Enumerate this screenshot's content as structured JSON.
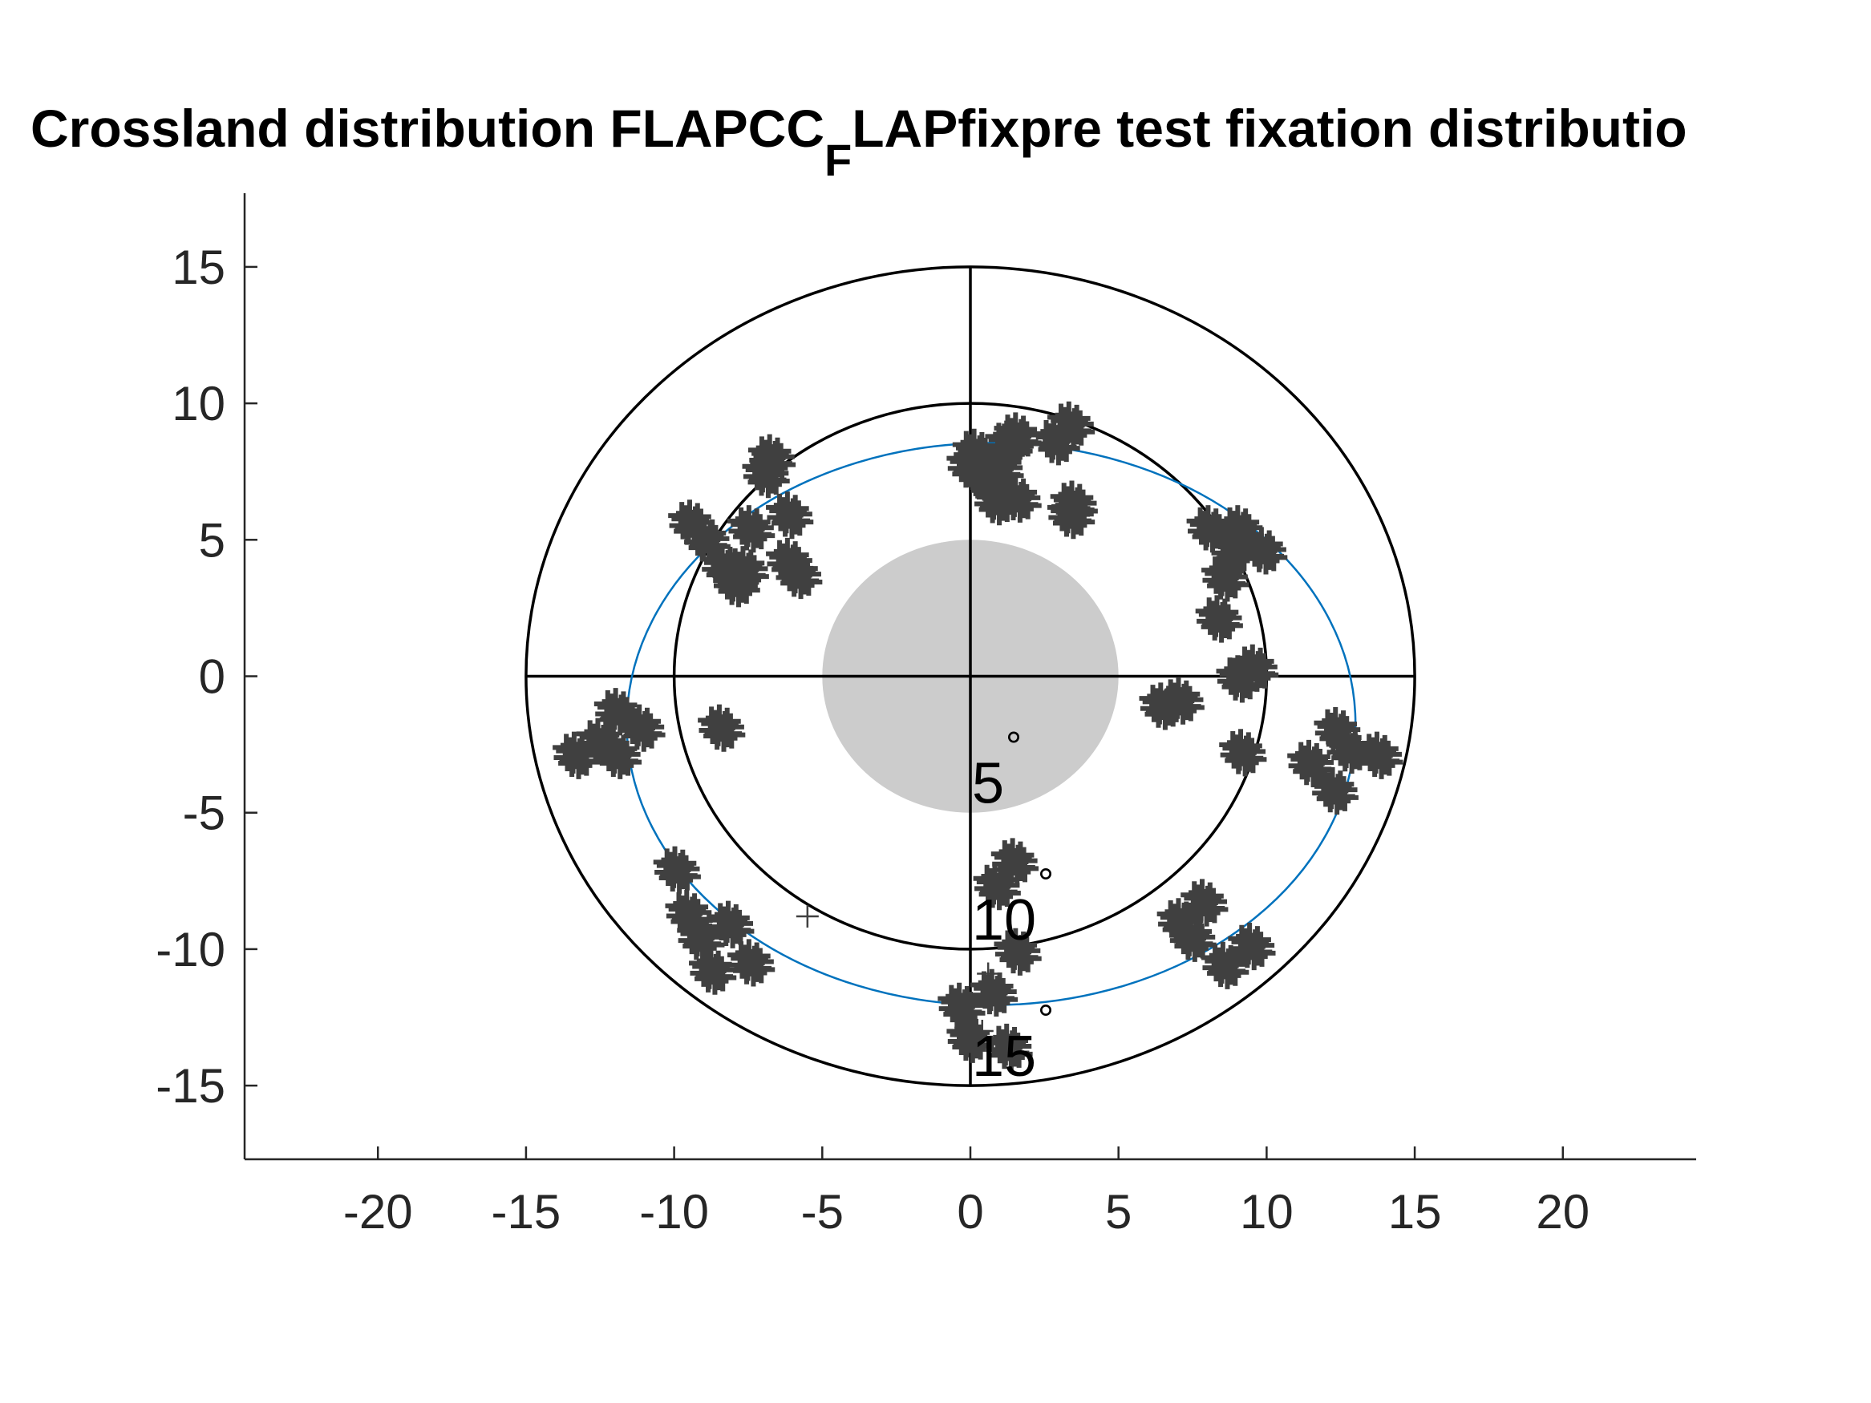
{
  "chart_data": {
    "type": "scatter",
    "title": "Crossland distribution FLAPCC",
    "title_subscript": "F",
    "title_rest": "LAPfixpre test fixation distributio",
    "xlabel": "",
    "ylabel": "",
    "xlim": [
      -24.5,
      24.5
    ],
    "ylim": [
      17.7,
      -17.7
    ],
    "y_reversed": true,
    "grid": false,
    "x_ticks": [
      -20,
      -15,
      -10,
      -5,
      0,
      5,
      10,
      15,
      20
    ],
    "y_ticks": [
      -15,
      -10,
      -5,
      0,
      5,
      10,
      15
    ],
    "x_tick_labels": [
      "-20",
      "-15",
      "-10",
      "-5",
      "0",
      "5",
      "10",
      "15",
      "20"
    ],
    "y_tick_labels": [
      "-15",
      "-10",
      "-5",
      "0",
      "5",
      "10",
      "15"
    ],
    "rings": [
      {
        "radius": 5,
        "label": "5",
        "style": "filled",
        "color": "#cccccc"
      },
      {
        "radius": 10,
        "label": "10",
        "style": "outline",
        "color": "#000000"
      },
      {
        "radius": 15,
        "label": "15",
        "style": "outline",
        "color": "#000000"
      }
    ],
    "degree_symbol": "°",
    "crosshair": {
      "x_range": [
        -15,
        15
      ],
      "y_range": [
        -15,
        15
      ],
      "color": "#000000"
    },
    "fitted_ellipse": {
      "center": [
        0.7,
        -1.75
      ],
      "rx": 12.3,
      "ry": 10.3,
      "color": "#0072bd"
    },
    "marker": "+",
    "marker_color": "#404040",
    "fixation_clusters": [
      {
        "x": 0.0,
        "y": -13.3
      },
      {
        "x": 1.3,
        "y": -13.6
      },
      {
        "x": -0.3,
        "y": -12.1
      },
      {
        "x": 0.8,
        "y": -11.6
      },
      {
        "x": 1.6,
        "y": -10.1
      },
      {
        "x": 0.9,
        "y": -7.7
      },
      {
        "x": 1.5,
        "y": -6.8
      },
      {
        "x": -8.7,
        "y": -10.8
      },
      {
        "x": -7.4,
        "y": -10.5
      },
      {
        "x": -9.1,
        "y": -9.6
      },
      {
        "x": -9.5,
        "y": -8.7
      },
      {
        "x": -8.1,
        "y": -9.1
      },
      {
        "x": -9.9,
        "y": -7.1
      },
      {
        "x": -13.3,
        "y": -2.9
      },
      {
        "x": -11.9,
        "y": -2.9
      },
      {
        "x": -12.5,
        "y": -2.4
      },
      {
        "x": -11.1,
        "y": -1.9
      },
      {
        "x": -11.9,
        "y": -1.3
      },
      {
        "x": -8.4,
        "y": -1.9
      },
      {
        "x": 8.6,
        "y": -10.6
      },
      {
        "x": 9.5,
        "y": -9.9
      },
      {
        "x": 7.5,
        "y": -9.6
      },
      {
        "x": 7.1,
        "y": -9.0
      },
      {
        "x": 7.9,
        "y": -8.3
      },
      {
        "x": 12.3,
        "y": -4.2
      },
      {
        "x": 11.5,
        "y": -3.2
      },
      {
        "x": 12.8,
        "y": -2.7
      },
      {
        "x": 13.8,
        "y": -2.9
      },
      {
        "x": 12.4,
        "y": -2.0
      },
      {
        "x": 9.2,
        "y": -2.8
      },
      {
        "x": 6.5,
        "y": -1.1
      },
      {
        "x": 7.1,
        "y": -0.9
      },
      {
        "x": 9.1,
        "y": -0.1
      },
      {
        "x": 9.6,
        "y": 0.3
      },
      {
        "x": 8.4,
        "y": 2.1
      },
      {
        "x": 8.6,
        "y": 3.6
      },
      {
        "x": 8.9,
        "y": 4.6
      },
      {
        "x": 9.9,
        "y": 4.6
      },
      {
        "x": 8.1,
        "y": 5.4
      },
      {
        "x": 9.1,
        "y": 5.4
      },
      {
        "x": -7.9,
        "y": 3.4
      },
      {
        "x": -7.6,
        "y": 3.9
      },
      {
        "x": -8.3,
        "y": 4.0
      },
      {
        "x": -5.8,
        "y": 3.7
      },
      {
        "x": -6.1,
        "y": 4.2
      },
      {
        "x": -8.9,
        "y": 5.0
      },
      {
        "x": -9.4,
        "y": 5.6
      },
      {
        "x": -7.4,
        "y": 5.4
      },
      {
        "x": -6.1,
        "y": 5.9
      },
      {
        "x": -6.9,
        "y": 7.4
      },
      {
        "x": -6.7,
        "y": 8.0
      },
      {
        "x": 0.9,
        "y": 6.4
      },
      {
        "x": 1.6,
        "y": 6.5
      },
      {
        "x": 0.4,
        "y": 7.3
      },
      {
        "x": 0.0,
        "y": 7.7
      },
      {
        "x": 1.0,
        "y": 7.6
      },
      {
        "x": 0.2,
        "y": 8.2
      },
      {
        "x": 1.3,
        "y": 8.5
      },
      {
        "x": 1.6,
        "y": 8.8
      },
      {
        "x": 3.4,
        "y": 5.9
      },
      {
        "x": 3.5,
        "y": 6.3
      },
      {
        "x": 2.9,
        "y": 8.6
      },
      {
        "x": 3.4,
        "y": 9.2
      }
    ],
    "single_fixations": [
      {
        "x": -5.5,
        "y": -8.8
      },
      {
        "x": 0.4,
        "y": -13.0
      },
      {
        "x": 0.6,
        "y": -10.9
      }
    ]
  }
}
